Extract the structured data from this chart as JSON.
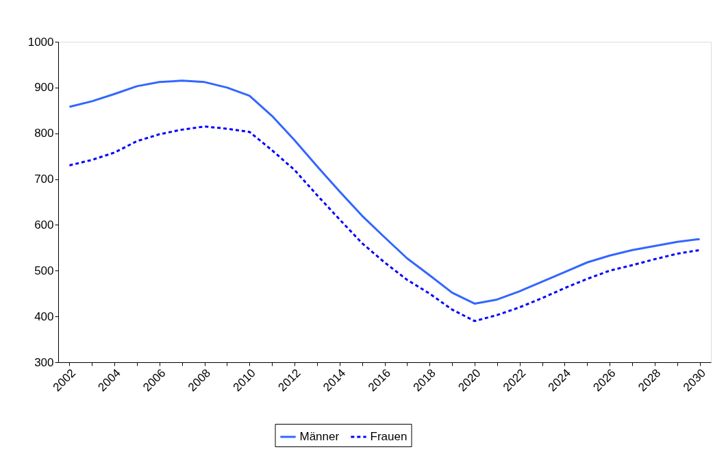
{
  "chart_data": {
    "type": "line",
    "categories": [
      "2002",
      null,
      "2004",
      null,
      "2006",
      null,
      "2008",
      null,
      "2010",
      null,
      "2012",
      null,
      "2014",
      null,
      "2016",
      null,
      "2018",
      null,
      "2020",
      null,
      "2022",
      null,
      "2024",
      null,
      "2026",
      null,
      "2028",
      null,
      "2030"
    ],
    "series": [
      {
        "name": "Männer",
        "color": "#3366ff",
        "line_style": "solid",
        "values": [
          858,
          870,
          886,
          903,
          912,
          915,
          912,
          900,
          882,
          838,
          785,
          728,
          673,
          620,
          573,
          527,
          490,
          452,
          428,
          437,
          455,
          476,
          497,
          518,
          533,
          545,
          554,
          563,
          569
        ]
      },
      {
        "name": "Frauen",
        "color": "#0000ff",
        "line_style": "dashed",
        "values": [
          730,
          742,
          758,
          783,
          798,
          808,
          815,
          810,
          803,
          763,
          720,
          665,
          612,
          560,
          518,
          480,
          450,
          415,
          390,
          403,
          420,
          440,
          462,
          482,
          500,
          512,
          525,
          537,
          545
        ]
      }
    ],
    "ylim": [
      300,
      1000
    ],
    "yticks": [
      300,
      400,
      500,
      600,
      700,
      800,
      900,
      1000
    ],
    "grid": false,
    "legend": "bottom",
    "marker": "none"
  }
}
